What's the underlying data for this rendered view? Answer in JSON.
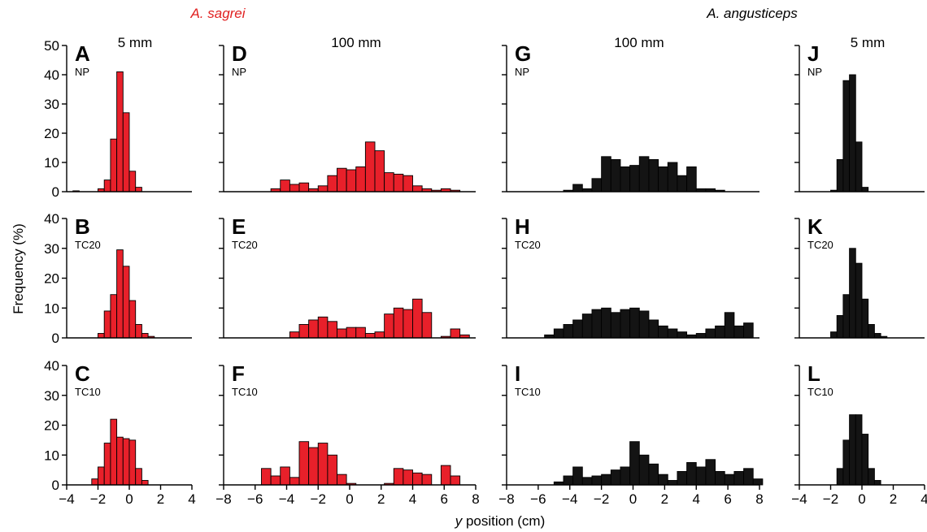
{
  "figure": {
    "species_labels": [
      {
        "text": "A. sagrei",
        "color": "#e02020"
      },
      {
        "text": "A. angusticeps",
        "color": "#000000"
      }
    ],
    "column_labels": [
      "5 mm",
      "100 mm",
      "100 mm",
      "5 mm"
    ],
    "row_labels": [
      "NP",
      "TC20",
      "TC10"
    ],
    "ylabel": "Frequency (%)",
    "xlabel_italic": "y",
    "xlabel_rest": " position (cm)"
  },
  "chart_data": [
    {
      "type": "bar",
      "panel": "A",
      "condition": "NP",
      "column_label": "5 mm",
      "color": "#e8202a",
      "x_start": -4,
      "bin_width": 0.4,
      "xlim": [
        -4,
        4
      ],
      "xticks": [
        -4,
        -2,
        0,
        2,
        4
      ],
      "ylim": [
        0,
        50
      ],
      "yticks": [
        0,
        10,
        20,
        30,
        40,
        50
      ],
      "values": [
        0,
        0.3,
        0,
        0,
        0,
        1,
        4,
        18,
        41,
        27,
        7,
        1.5,
        0,
        0,
        0,
        0,
        0,
        0,
        0,
        0
      ]
    },
    {
      "type": "bar",
      "panel": "B",
      "condition": "TC20",
      "column_label": "",
      "color": "#e8202a",
      "x_start": -4,
      "bin_width": 0.4,
      "xlim": [
        -4,
        4
      ],
      "xticks": [
        -4,
        -2,
        0,
        2,
        4
      ],
      "ylim": [
        0,
        40
      ],
      "yticks": [
        0,
        10,
        20,
        30,
        40
      ],
      "values": [
        0,
        0,
        0,
        0,
        0,
        1.5,
        9,
        14.5,
        29.5,
        24,
        12.5,
        4.5,
        1.5,
        0.5,
        0,
        0,
        0,
        0,
        0,
        0
      ]
    },
    {
      "type": "bar",
      "panel": "C",
      "condition": "TC10",
      "column_label": "",
      "color": "#e8202a",
      "x_start": -4,
      "bin_width": 0.4,
      "xlim": [
        -4,
        4
      ],
      "xticks": [
        -4,
        -2,
        0,
        2,
        4
      ],
      "ylim": [
        0,
        40
      ],
      "yticks": [
        0,
        10,
        20,
        30,
        40
      ],
      "values": [
        0,
        0,
        0,
        0,
        2,
        6,
        14,
        22,
        16,
        15.5,
        15,
        5.5,
        1.5,
        0,
        0,
        0,
        0,
        0,
        0,
        0
      ]
    },
    {
      "type": "bar",
      "panel": "D",
      "condition": "NP",
      "column_label": "100 mm",
      "color": "#e8202a",
      "x_start": -8,
      "bin_width": 0.6,
      "xlim": [
        -8,
        8
      ],
      "xticks": [
        -8,
        -6,
        -4,
        -2,
        0,
        2,
        4,
        6,
        8
      ],
      "ylim": [
        0,
        50
      ],
      "yticks": [
        0,
        10,
        20,
        30,
        40,
        50
      ],
      "values": [
        0,
        0,
        0,
        0,
        0,
        1,
        4,
        2.5,
        3,
        1,
        2,
        5.5,
        8,
        7.5,
        8.5,
        17,
        14,
        6.5,
        6,
        5.5,
        2,
        1,
        0.5,
        1,
        0.5,
        0,
        0
      ]
    },
    {
      "type": "bar",
      "panel": "E",
      "condition": "TC20",
      "column_label": "",
      "color": "#e8202a",
      "x_start": -8,
      "bin_width": 0.6,
      "xlim": [
        -8,
        8
      ],
      "xticks": [
        -8,
        -6,
        -4,
        -2,
        0,
        2,
        4,
        6,
        8
      ],
      "ylim": [
        0,
        40
      ],
      "yticks": [
        0,
        10,
        20,
        30,
        40
      ],
      "values": [
        0,
        0,
        0,
        0,
        0,
        0,
        0,
        2,
        4.5,
        6,
        7,
        5.5,
        3,
        3.5,
        3.5,
        1.5,
        2,
        8,
        10,
        9.5,
        13,
        8.5,
        0,
        0.5,
        3,
        1,
        0
      ]
    },
    {
      "type": "bar",
      "panel": "F",
      "condition": "TC10",
      "column_label": "",
      "color": "#e8202a",
      "x_start": -8,
      "bin_width": 0.6,
      "xlim": [
        -8,
        8
      ],
      "xticks": [
        -8,
        -6,
        -4,
        -2,
        0,
        2,
        4,
        6,
        8
      ],
      "ylim": [
        0,
        40
      ],
      "yticks": [
        0,
        10,
        20,
        30,
        40
      ],
      "values": [
        0,
        0,
        0,
        0,
        5.5,
        3,
        6,
        2.5,
        14.5,
        12.5,
        14,
        10,
        3.5,
        0.5,
        0,
        0,
        0,
        0.5,
        5.5,
        5,
        4,
        3.5,
        0,
        6.5,
        3,
        0,
        0
      ]
    },
    {
      "type": "bar",
      "panel": "G",
      "condition": "NP",
      "column_label": "100 mm",
      "color": "#141414",
      "x_start": -8,
      "bin_width": 0.6,
      "xlim": [
        -8,
        8
      ],
      "xticks": [
        -8,
        -6,
        -4,
        -2,
        0,
        2,
        4,
        6,
        8
      ],
      "ylim": [
        0,
        50
      ],
      "yticks": [
        0,
        10,
        20,
        30,
        40,
        50
      ],
      "values": [
        0,
        0,
        0,
        0,
        0,
        0,
        0.5,
        2.5,
        1,
        4.5,
        12,
        11,
        8.5,
        9,
        12,
        11,
        8.5,
        10,
        5.5,
        8.5,
        1,
        1,
        0.5,
        0,
        0,
        0,
        0
      ]
    },
    {
      "type": "bar",
      "panel": "H",
      "condition": "TC20",
      "column_label": "",
      "color": "#141414",
      "x_start": -8,
      "bin_width": 0.6,
      "xlim": [
        -8,
        8
      ],
      "xticks": [
        -8,
        -6,
        -4,
        -2,
        0,
        2,
        4,
        6,
        8
      ],
      "ylim": [
        0,
        40
      ],
      "yticks": [
        0,
        10,
        20,
        30,
        40
      ],
      "values": [
        0,
        0,
        0,
        0,
        1,
        3,
        4.5,
        6,
        8,
        9.5,
        10,
        8.5,
        9.5,
        10,
        9,
        6,
        4,
        3,
        2,
        1,
        1.5,
        3,
        4,
        8.5,
        4,
        5,
        0
      ]
    },
    {
      "type": "bar",
      "panel": "I",
      "condition": "TC10",
      "column_label": "",
      "color": "#141414",
      "x_start": -8,
      "bin_width": 0.6,
      "xlim": [
        -8,
        8
      ],
      "xticks": [
        -8,
        -6,
        -4,
        -2,
        0,
        2,
        4,
        6,
        8
      ],
      "ylim": [
        0,
        40
      ],
      "yticks": [
        0,
        10,
        20,
        30,
        40
      ],
      "values": [
        0,
        0,
        0,
        0,
        0,
        1,
        3,
        6,
        2.5,
        3,
        3.5,
        5,
        6,
        14.5,
        10,
        7,
        3.5,
        1.5,
        4.5,
        7.5,
        6,
        8.5,
        4.5,
        3.5,
        4.5,
        5.5,
        2
      ]
    },
    {
      "type": "bar",
      "panel": "J",
      "condition": "NP",
      "column_label": "5 mm",
      "color": "#141414",
      "x_start": -4,
      "bin_width": 0.4,
      "xlim": [
        -4,
        4
      ],
      "xticks": [
        -4,
        -2,
        0,
        2,
        4
      ],
      "ylim": [
        0,
        50
      ],
      "yticks": [
        0,
        10,
        20,
        30,
        40,
        50
      ],
      "values": [
        0,
        0,
        0,
        0,
        0,
        0.5,
        11,
        38,
        40,
        17,
        1.5,
        0,
        0,
        0,
        0,
        0,
        0,
        0,
        0,
        0
      ]
    },
    {
      "type": "bar",
      "panel": "K",
      "condition": "TC20",
      "column_label": "",
      "color": "#141414",
      "x_start": -4,
      "bin_width": 0.4,
      "xlim": [
        -4,
        4
      ],
      "xticks": [
        -4,
        -2,
        0,
        2,
        4
      ],
      "ylim": [
        0,
        40
      ],
      "yticks": [
        0,
        10,
        20,
        30,
        40
      ],
      "values": [
        0,
        0,
        0,
        0,
        0,
        2,
        7.5,
        14.5,
        30,
        25,
        13,
        4.5,
        1.5,
        0.5,
        0,
        0,
        0,
        0,
        0,
        0
      ]
    },
    {
      "type": "bar",
      "panel": "L",
      "condition": "TC10",
      "column_label": "",
      "color": "#141414",
      "x_start": -4,
      "bin_width": 0.4,
      "xlim": [
        -4,
        4
      ],
      "xticks": [
        -4,
        -2,
        0,
        2,
        4
      ],
      "ylim": [
        0,
        40
      ],
      "yticks": [
        0,
        10,
        20,
        30,
        40
      ],
      "values": [
        0,
        0,
        0,
        0,
        0,
        0,
        5.5,
        15,
        23.5,
        23.5,
        17,
        5.5,
        1.5,
        0,
        0,
        0,
        0,
        0,
        0,
        0
      ]
    }
  ]
}
